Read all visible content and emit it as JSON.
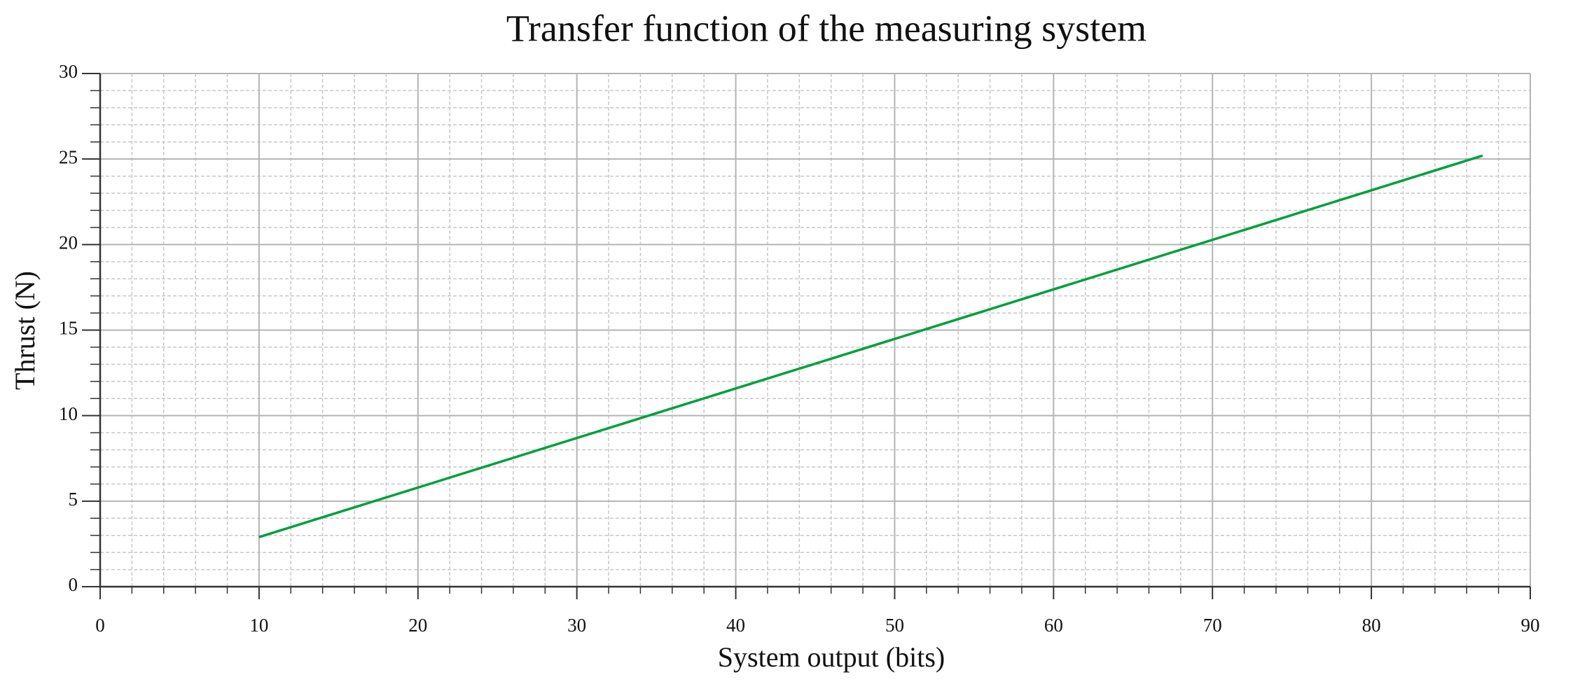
{
  "chart_data": {
    "type": "line",
    "title": "Transfer function of the measuring system",
    "x_label": "System output (bits)",
    "y_label": "Thrust (N)",
    "x": [
      10,
      87
    ],
    "series": [
      {
        "name": null,
        "color": "#00a03c",
        "values": [
          2.9,
          25.2
        ]
      }
    ],
    "xlim": [
      0,
      90
    ],
    "xticks": [
      0,
      10,
      20,
      30,
      40,
      50,
      60,
      70,
      80,
      90
    ],
    "ylim": [
      0,
      30
    ],
    "yticks": [
      0,
      5,
      10,
      15,
      20,
      25,
      30
    ],
    "grid": true,
    "minor_divisions": 5
  }
}
